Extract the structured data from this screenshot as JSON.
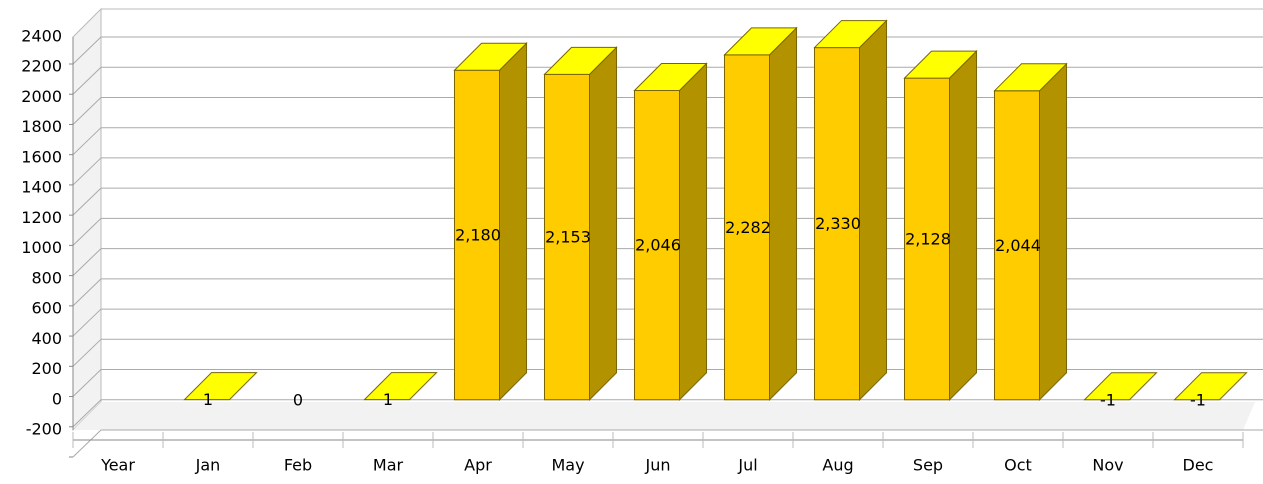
{
  "chart_data": {
    "type": "bar3d",
    "categories": [
      "Year",
      "Jan",
      "Feb",
      "Mar",
      "Apr",
      "May",
      "Jun",
      "Jul",
      "Aug",
      "Sep",
      "Oct",
      "Nov",
      "Dec"
    ],
    "values": [
      null,
      1,
      0,
      1,
      2180,
      2153,
      2046,
      2282,
      2330,
      2128,
      2044,
      -1,
      -1
    ],
    "value_labels": [
      null,
      "1",
      "0",
      "1",
      "2,180",
      "2,153",
      "2,046",
      "2,282",
      "2,330",
      "2,128",
      "2,044",
      "-1",
      "-1"
    ],
    "color": "#ffcc00",
    "ylim": [
      -200,
      2400
    ],
    "yticks": [
      -200,
      0,
      200,
      400,
      600,
      800,
      1000,
      1200,
      1400,
      1600,
      1800,
      2000,
      2200,
      2400
    ],
    "grid": true
  }
}
